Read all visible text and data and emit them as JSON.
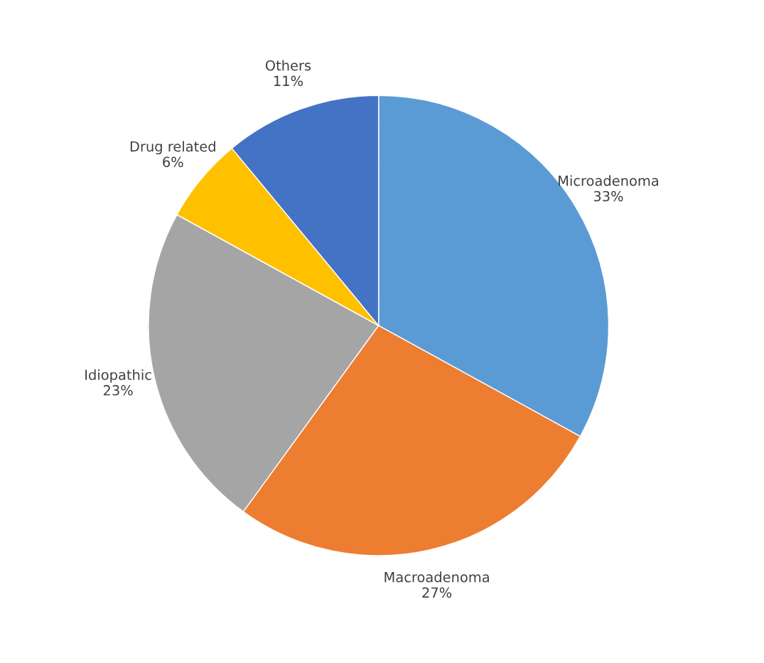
{
  "chart_data": {
    "type": "pie",
    "categories": [
      "Microadenoma",
      "Macroadenoma",
      "Idiopathic",
      "Drug related",
      "Others"
    ],
    "values": [
      33,
      27,
      23,
      6,
      11
    ],
    "value_labels": [
      "33%",
      "27%",
      "23%",
      "6%",
      "11%"
    ],
    "colors": [
      "#5b9bd5",
      "#ed7d31",
      "#a5a5a5",
      "#ffc000",
      "#4472c4"
    ]
  }
}
